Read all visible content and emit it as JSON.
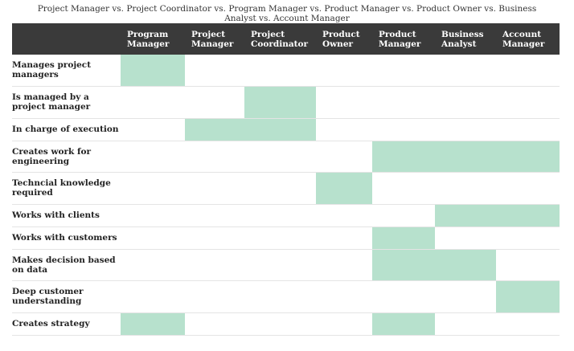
{
  "title": "Project Manager vs. Project Coordinator vs. Program Manager vs. Product Manager vs. Product Owner vs. Business Analyst vs. Account Manager",
  "columns": [
    "Program Manager",
    "Project Manager",
    "Project Coordinator",
    "Product Owner",
    "Product Manager",
    "Business Analyst",
    "Account Manager"
  ],
  "highlight_color": "#b7e1cd",
  "header_color": "#3a3a3a",
  "rows": [
    {
      "label": "Manages project managers",
      "checks": [
        true,
        false,
        false,
        false,
        false,
        false,
        false
      ]
    },
    {
      "label": "Is managed by a project manager",
      "checks": [
        false,
        false,
        true,
        false,
        false,
        false,
        false
      ]
    },
    {
      "label": "In charge of execution",
      "checks": [
        false,
        true,
        true,
        false,
        false,
        false,
        false
      ]
    },
    {
      "label": "Creates work for engineering",
      "checks": [
        false,
        false,
        false,
        false,
        true,
        true,
        true
      ]
    },
    {
      "label": "Techncial knowledge required",
      "checks": [
        false,
        false,
        false,
        true,
        false,
        false,
        false
      ]
    },
    {
      "label": "Works with clients",
      "checks": [
        false,
        false,
        false,
        false,
        false,
        true,
        true
      ]
    },
    {
      "label": "Works with customers",
      "checks": [
        false,
        false,
        false,
        false,
        true,
        false,
        false
      ]
    },
    {
      "label": "Makes decision based on data",
      "checks": [
        false,
        false,
        false,
        false,
        true,
        true,
        false
      ]
    },
    {
      "label": "Deep customer understanding",
      "checks": [
        false,
        false,
        false,
        false,
        false,
        false,
        true
      ]
    },
    {
      "label": "Creates strategy",
      "checks": [
        true,
        false,
        false,
        false,
        true,
        false,
        false
      ]
    }
  ]
}
